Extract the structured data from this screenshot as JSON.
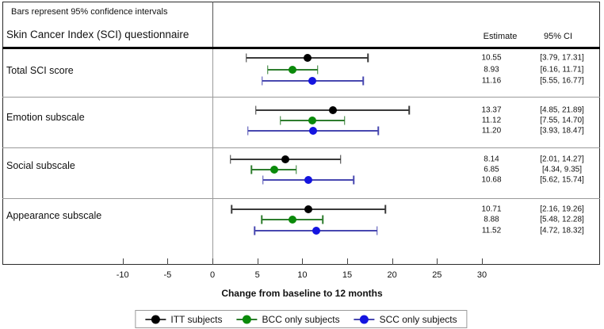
{
  "header": {
    "note": "Bars represent 95% confidence intervals",
    "title": "Skin Cancer Index (SCI) questionnaire",
    "col_estimate": "Estimate",
    "col_ci": "95% CI"
  },
  "chart_data": {
    "type": "forest",
    "note": "Bars represent 95% confidence intervals",
    "title": "Skin Cancer Index (SCI) questionnaire",
    "xlabel": "Change from baseline to 12 months",
    "x_ticks": [
      -10,
      -5,
      0,
      5,
      10,
      15,
      20,
      25,
      30
    ],
    "xlim": [
      -13.4,
      33.2
    ],
    "grid": false,
    "legend_position": "bottom",
    "reference_line_x": 0,
    "columns": [
      "Estimate",
      "95% CI"
    ],
    "series": [
      {
        "name": "ITT subjects",
        "dot_color": "#000000",
        "line_color": "#3a3a3a"
      },
      {
        "name": "BCC only subjects",
        "dot_color": "#0a8a0a",
        "line_color": "#2e7d2e"
      },
      {
        "name": "SCC only subjects",
        "dot_color": "#1414e0",
        "line_color": "#4848b0"
      }
    ],
    "groups": [
      {
        "label": "Total SCI score",
        "rows": [
          {
            "series": "ITT subjects",
            "estimate": 10.55,
            "ci": [
              3.79,
              17.31
            ]
          },
          {
            "series": "BCC only subjects",
            "estimate": 8.93,
            "ci": [
              6.16,
              11.71
            ]
          },
          {
            "series": "SCC only subjects",
            "estimate": 11.16,
            "ci": [
              5.55,
              16.77
            ]
          }
        ]
      },
      {
        "label": "Emotion subscale",
        "rows": [
          {
            "series": "ITT subjects",
            "estimate": 13.37,
            "ci": [
              4.85,
              21.89
            ]
          },
          {
            "series": "BCC only subjects",
            "estimate": 11.12,
            "ci": [
              7.55,
              14.7
            ]
          },
          {
            "series": "SCC only subjects",
            "estimate": 11.2,
            "ci": [
              3.93,
              18.47
            ]
          }
        ]
      },
      {
        "label": "Social subscale",
        "rows": [
          {
            "series": "ITT subjects",
            "estimate": 8.14,
            "ci": [
              2.01,
              14.27
            ]
          },
          {
            "series": "BCC only subjects",
            "estimate": 6.85,
            "ci": [
              4.34,
              9.35
            ]
          },
          {
            "series": "SCC only subjects",
            "estimate": 10.68,
            "ci": [
              5.62,
              15.74
            ]
          }
        ]
      },
      {
        "label": "Appearance subscale",
        "rows": [
          {
            "series": "ITT subjects",
            "estimate": 10.71,
            "ci": [
              2.16,
              19.26
            ]
          },
          {
            "series": "BCC only subjects",
            "estimate": 8.88,
            "ci": [
              5.48,
              12.28
            ]
          },
          {
            "series": "SCC only subjects",
            "estimate": 11.52,
            "ci": [
              4.72,
              18.32
            ]
          }
        ]
      }
    ]
  },
  "legend": {
    "items": [
      "ITT subjects",
      "BCC only subjects",
      "SCC only subjects"
    ]
  }
}
